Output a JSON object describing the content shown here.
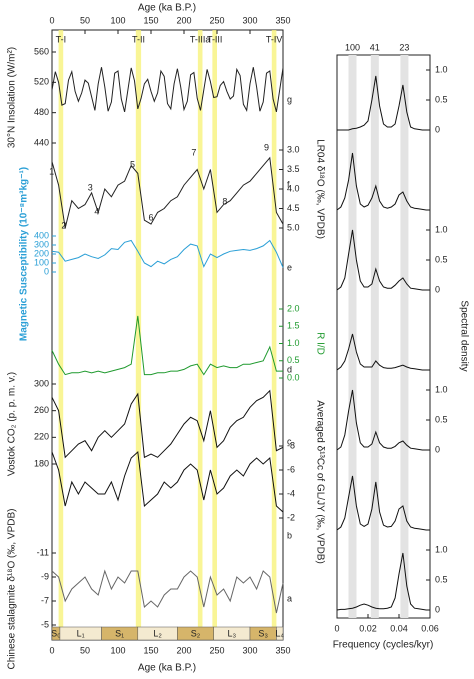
{
  "age_axis": {
    "label": "Age (ka B.P.)",
    "xlim": [
      0,
      350
    ],
    "xticks": [
      0,
      50,
      100,
      150,
      200,
      250,
      300,
      350
    ]
  },
  "terminations": [
    {
      "label": "T-I",
      "start": 10,
      "end": 17
    },
    {
      "label": "T-II",
      "start": 127,
      "end": 135
    },
    {
      "label": "T-IIIa",
      "start": 221,
      "end": 228
    },
    {
      "label": "T-III",
      "start": 243,
      "end": 250
    },
    {
      "label": "T-IV",
      "start": 333,
      "end": 340
    }
  ],
  "stratigraphy": [
    {
      "label": "S₀",
      "kind": "soil",
      "start": 0,
      "end": 12
    },
    {
      "label": "L₁",
      "kind": "loess",
      "start": 12,
      "end": 75
    },
    {
      "label": "S₁",
      "kind": "soil",
      "start": 75,
      "end": 130
    },
    {
      "label": "L₂",
      "kind": "loess",
      "start": 130,
      "end": 190
    },
    {
      "label": "S₂",
      "kind": "soil",
      "start": 190,
      "end": 245
    },
    {
      "label": "L₃",
      "kind": "loess",
      "start": 245,
      "end": 300
    },
    {
      "label": "S₃",
      "kind": "soil",
      "start": 300,
      "end": 340
    },
    {
      "label": "L₄",
      "kind": "loess",
      "start": 340,
      "end": 350
    }
  ],
  "chart_data": [
    {
      "type": "line",
      "curve_label": "g",
      "label": "30°N Insolation (W/m²)",
      "axis_side": "left",
      "inverted": false,
      "color": "#222222",
      "label_color": "#222222",
      "ylim": [
        440,
        560
      ],
      "yticks": [
        440,
        480,
        520,
        560
      ],
      "x": [
        0,
        5,
        10,
        15,
        20,
        25,
        30,
        35,
        40,
        45,
        50,
        55,
        60,
        65,
        70,
        75,
        80,
        85,
        90,
        95,
        100,
        105,
        110,
        115,
        120,
        125,
        130,
        135,
        140,
        145,
        150,
        155,
        160,
        165,
        170,
        175,
        180,
        185,
        190,
        195,
        200,
        205,
        210,
        215,
        220,
        225,
        230,
        235,
        240,
        245,
        250,
        255,
        260,
        265,
        270,
        275,
        280,
        285,
        290,
        295,
        300,
        305,
        310,
        315,
        320,
        325,
        330,
        335,
        340,
        345,
        350
      ],
      "values": [
        510,
        534,
        520,
        490,
        492,
        523,
        534,
        508,
        495,
        506,
        523,
        519,
        501,
        483,
        518,
        540,
        514,
        482,
        494,
        532,
        535,
        498,
        481,
        510,
        539,
        522,
        485,
        499,
        518,
        524,
        508,
        495,
        506,
        535,
        528,
        492,
        485,
        518,
        538,
        514,
        484,
        495,
        530,
        533,
        499,
        483,
        510,
        537,
        521,
        500,
        501,
        516,
        521,
        508,
        498,
        502,
        537,
        529,
        491,
        483,
        518,
        540,
        514,
        482,
        494,
        532,
        535,
        498,
        481,
        510,
        539
      ]
    },
    {
      "type": "line",
      "curve_label": "f",
      "label": "LR04 δ¹⁸O (‰, VPDB)",
      "axis_side": "right",
      "inverted": true,
      "color": "#222222",
      "label_color": "#222222",
      "annotations": [
        "1",
        "2",
        "3",
        "4",
        "5",
        "6",
        "7",
        "8",
        "9"
      ],
      "ylim": [
        3,
        5
      ],
      "yticks": [
        {
          "value": 3,
          "label": "3.0"
        },
        3.5,
        {
          "value": 4,
          "label": "4.0"
        },
        4.5,
        {
          "value": 5,
          "label": "5.0"
        }
      ],
      "x": [
        0,
        10,
        20,
        30,
        40,
        50,
        60,
        70,
        80,
        90,
        100,
        110,
        120,
        130,
        140,
        150,
        160,
        170,
        180,
        190,
        200,
        210,
        220,
        230,
        240,
        250,
        260,
        270,
        280,
        290,
        300,
        310,
        320,
        330,
        340,
        350
      ],
      "values": [
        3.3,
        3.9,
        5.0,
        4.3,
        4.5,
        4.4,
        4.1,
        4.6,
        4.0,
        4.2,
        3.9,
        3.8,
        3.4,
        3.6,
        4.8,
        4.9,
        4.6,
        4.5,
        4.3,
        4.2,
        3.9,
        3.7,
        3.5,
        4.0,
        3.5,
        4.6,
        4.4,
        4.3,
        4.1,
        3.9,
        3.8,
        3.6,
        3.4,
        3.2,
        4.6,
        4.9
      ]
    },
    {
      "type": "line",
      "curve_label": "e",
      "label": "Magnetic Susceptibility (10⁻⁸m³kg⁻¹)",
      "axis_side": "left",
      "inverted": false,
      "color": "#2a9fd6",
      "label_color": "#2a9fd6",
      "ylim": [
        0,
        400
      ],
      "yticks": [
        0,
        100,
        200,
        300,
        400
      ],
      "x": [
        0,
        10,
        20,
        30,
        40,
        50,
        60,
        70,
        80,
        90,
        100,
        110,
        120,
        130,
        140,
        150,
        160,
        170,
        180,
        190,
        200,
        210,
        220,
        230,
        240,
        250,
        260,
        270,
        280,
        290,
        300,
        310,
        320,
        330,
        340,
        350
      ],
      "values": [
        230,
        220,
        120,
        140,
        160,
        200,
        170,
        150,
        190,
        260,
        250,
        330,
        350,
        230,
        100,
        60,
        120,
        90,
        140,
        170,
        250,
        310,
        290,
        60,
        200,
        160,
        200,
        230,
        240,
        250,
        240,
        260,
        290,
        350,
        220,
        50
      ]
    },
    {
      "type": "line",
      "curve_label": "d",
      "label": "R I/D",
      "axis_side": "right",
      "inverted": false,
      "color": "#1f9a2e",
      "label_color": "#1f9a2e",
      "ylim": [
        0,
        2
      ],
      "yticks": [
        {
          "value": 0,
          "label": "0.0"
        },
        0.5,
        {
          "value": 1,
          "label": "1.0"
        },
        1.5,
        {
          "value": 2,
          "label": "2.0"
        }
      ],
      "x": [
        0,
        10,
        20,
        30,
        40,
        50,
        60,
        70,
        80,
        90,
        100,
        110,
        120,
        130,
        140,
        150,
        160,
        170,
        180,
        190,
        200,
        210,
        220,
        230,
        240,
        250,
        260,
        270,
        280,
        290,
        300,
        310,
        320,
        330,
        340,
        350
      ],
      "values": [
        0.8,
        0.4,
        0.1,
        0.15,
        0.15,
        0.2,
        0.15,
        0.2,
        0.15,
        0.2,
        0.25,
        0.3,
        0.4,
        1.8,
        0.1,
        0.1,
        0.15,
        0.15,
        0.2,
        0.2,
        0.25,
        0.35,
        0.4,
        0.1,
        0.4,
        0.3,
        0.35,
        0.3,
        0.3,
        0.4,
        0.4,
        0.45,
        0.5,
        0.9,
        0.2,
        0.2
      ]
    },
    {
      "type": "line",
      "curve_label": "c",
      "label": "Vostok CO₂ (p. p. m. v.)",
      "axis_side": "left",
      "inverted": false,
      "color": "#111111",
      "label_color": "#222222",
      "ylim": [
        180,
        300
      ],
      "yticks": [
        180,
        220,
        260,
        300
      ],
      "x": [
        0,
        10,
        20,
        30,
        40,
        50,
        60,
        70,
        80,
        90,
        100,
        110,
        120,
        130,
        140,
        150,
        160,
        170,
        180,
        190,
        200,
        210,
        220,
        230,
        240,
        250,
        260,
        270,
        280,
        290,
        300,
        310,
        320,
        330,
        340,
        350
      ],
      "values": [
        280,
        260,
        190,
        200,
        210,
        215,
        200,
        220,
        230,
        220,
        230,
        240,
        270,
        285,
        190,
        195,
        190,
        200,
        210,
        225,
        240,
        250,
        245,
        215,
        260,
        205,
        215,
        235,
        245,
        250,
        265,
        275,
        280,
        290,
        200,
        205
      ]
    },
    {
      "type": "line",
      "curve_label": "b",
      "label": "Averaged δ¹³Cc of GL/JY (‰, VPDB)",
      "axis_side": "right",
      "inverted": true,
      "color": "#111111",
      "label_color": "#222222",
      "ylim": [
        -8,
        -2
      ],
      "yticks": [
        -8,
        -6,
        -4,
        -2
      ],
      "x": [
        0,
        10,
        20,
        30,
        40,
        50,
        60,
        70,
        80,
        90,
        100,
        110,
        120,
        130,
        140,
        150,
        160,
        170,
        180,
        190,
        200,
        210,
        220,
        230,
        240,
        250,
        260,
        270,
        280,
        290,
        300,
        310,
        320,
        330,
        340,
        350
      ],
      "values": [
        -7.5,
        -6,
        -3,
        -5,
        -4,
        -5,
        -4.5,
        -4,
        -4,
        -5,
        -3.5,
        -5.5,
        -7,
        -7.5,
        -3,
        -3.5,
        -4,
        -5,
        -4.5,
        -5,
        -6,
        -6.5,
        -6,
        -3.5,
        -6,
        -4,
        -4.5,
        -5.5,
        -6,
        -5.5,
        -6.5,
        -7,
        -6.5,
        -7,
        -3,
        -2.5
      ]
    },
    {
      "type": "line",
      "curve_label": "a",
      "label": "Chinese stalagmite δ¹⁸O (‰, VPDB)",
      "axis_side": "left",
      "inverted": true,
      "color": "#666666",
      "label_color": "#222222",
      "ylim": [
        -11,
        -5
      ],
      "yticks": [
        -11,
        -9,
        -7,
        -5
      ],
      "x": [
        0,
        10,
        20,
        30,
        40,
        50,
        60,
        70,
        80,
        90,
        100,
        110,
        120,
        130,
        140,
        150,
        160,
        170,
        180,
        190,
        200,
        210,
        220,
        230,
        240,
        250,
        260,
        270,
        280,
        290,
        300,
        310,
        320,
        330,
        340,
        350
      ],
      "values": [
        -9.5,
        -9,
        -7,
        -8,
        -8.5,
        -9,
        -8,
        -7.5,
        -9.5,
        -8,
        -9,
        -8.5,
        -9.5,
        -9.5,
        -6.5,
        -7,
        -6.5,
        -7.5,
        -8,
        -8,
        -9,
        -9.5,
        -9,
        -6.5,
        -9,
        -7.5,
        -8,
        -7,
        -9,
        -8.5,
        -9,
        -8,
        -9.5,
        -9,
        -6,
        -8.5
      ]
    },
    {
      "type": "spectrum",
      "xlabel": "Frequency (cycles/kyr)",
      "ylabel": "Spectral density",
      "xlim": [
        0,
        0.06
      ],
      "xticks": [
        0,
        0.02,
        0.04,
        0.06
      ],
      "ylim": [
        0,
        1.2
      ],
      "bands": [
        {
          "label": "100",
          "value": 0.01
        },
        {
          "label": "41",
          "value": 0.0244
        },
        {
          "label": "23",
          "value": 0.0435
        }
      ],
      "x": [
        0,
        0.0025,
        0.005,
        0.0075,
        0.01,
        0.0125,
        0.015,
        0.0175,
        0.02,
        0.0225,
        0.025,
        0.0275,
        0.03,
        0.0325,
        0.035,
        0.0375,
        0.04,
        0.0425,
        0.045,
        0.0475,
        0.05,
        0.0525,
        0.055,
        0.0575,
        0.06
      ],
      "series": [
        {
          "color": "#111111",
          "yticks": [
            0,
            0.5,
            {
              "value": 1,
              "label": "1.0"
            }
          ],
          "values": [
            0,
            0,
            0,
            0,
            0.02,
            0.03,
            0.05,
            0.08,
            0.15,
            0.5,
            0.9,
            0.4,
            0.1,
            0.05,
            0.05,
            0.1,
            0.4,
            0.75,
            0.3,
            0.05,
            0.02,
            0.01,
            0,
            0,
            0
          ]
        },
        {
          "color": "#111111",
          "values": [
            0,
            0.05,
            0.2,
            0.5,
            0.95,
            0.4,
            0.1,
            0.05,
            0.08,
            0.2,
            0.4,
            0.15,
            0.05,
            0.03,
            0.05,
            0.1,
            0.25,
            0.3,
            0.15,
            0.05,
            0.03,
            0.02,
            0.01,
            0,
            0
          ]
        },
        {
          "color": "#111111",
          "yticks": [
            0,
            0.5,
            {
              "value": 1,
              "label": "1.0"
            }
          ],
          "values": [
            0,
            0.05,
            0.2,
            0.6,
            1.0,
            0.5,
            0.15,
            0.05,
            0.05,
            0.1,
            0.35,
            0.15,
            0.05,
            0.03,
            0.03,
            0.08,
            0.15,
            0.2,
            0.1,
            0.03,
            0.02,
            0.01,
            0,
            0,
            0
          ]
        },
        {
          "color": "#111111",
          "values": [
            0,
            0.05,
            0.15,
            0.35,
            0.6,
            0.3,
            0.1,
            0.05,
            0.05,
            0.05,
            0.15,
            0.08,
            0.04,
            0.03,
            0.03,
            0.04,
            0.06,
            0.08,
            0.05,
            0.03,
            0.02,
            0.01,
            0,
            0,
            0
          ]
        },
        {
          "color": "#111111",
          "yticks": [
            0,
            0.5,
            {
              "value": 1,
              "label": "1.0"
            }
          ],
          "values": [
            0,
            0.05,
            0.25,
            0.65,
            1.0,
            0.45,
            0.12,
            0.05,
            0.05,
            0.1,
            0.3,
            0.12,
            0.05,
            0.03,
            0.03,
            0.06,
            0.12,
            0.15,
            0.08,
            0.03,
            0.02,
            0.01,
            0,
            0,
            0
          ]
        },
        {
          "color": "#111111",
          "values": [
            0,
            0.05,
            0.2,
            0.55,
            0.9,
            0.4,
            0.1,
            0.06,
            0.1,
            0.35,
            0.8,
            0.3,
            0.08,
            0.05,
            0.06,
            0.15,
            0.35,
            0.4,
            0.15,
            0.05,
            0.03,
            0.02,
            0.01,
            0,
            0
          ]
        },
        {
          "color": "#111111",
          "yticks": [
            0,
            0.5,
            {
              "value": 1,
              "label": "1.0"
            }
          ],
          "values": [
            0,
            0.01,
            0.01,
            0.02,
            0.03,
            0.05,
            0.08,
            0.1,
            0.08,
            0.05,
            0.03,
            0.02,
            0.02,
            0.03,
            0.05,
            0.2,
            0.6,
            0.95,
            0.4,
            0.1,
            0.03,
            0.02,
            0.01,
            0,
            0
          ]
        }
      ]
    }
  ]
}
